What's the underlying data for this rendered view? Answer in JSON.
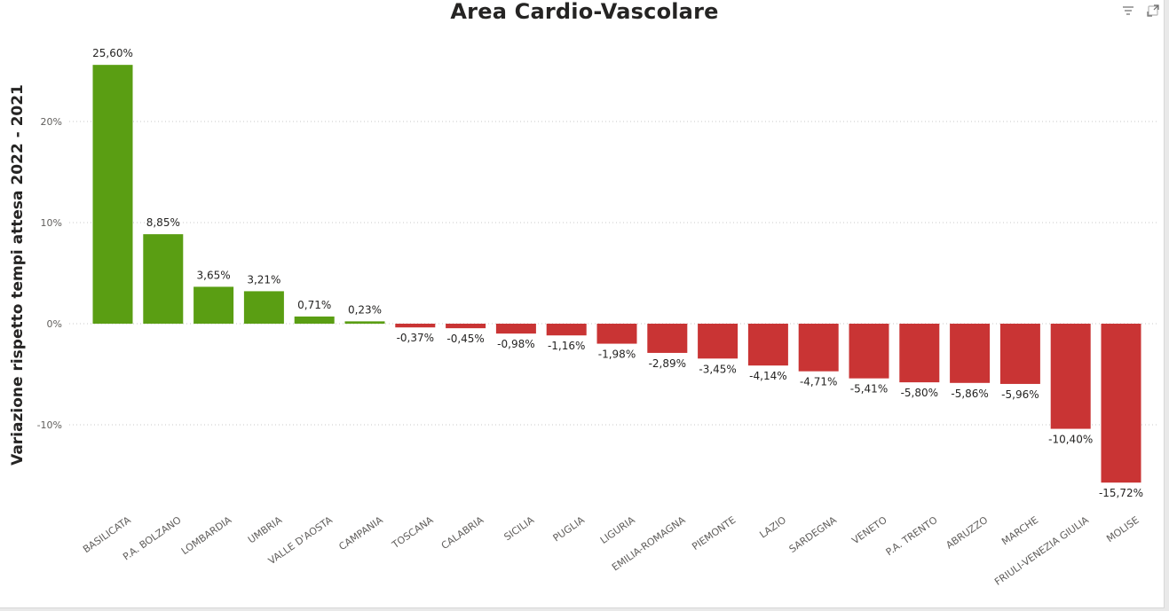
{
  "chart_data": {
    "type": "bar",
    "title": "Area Cardio-Vascolare",
    "xlabel": "",
    "ylabel": "Variazione rispetto tempi attesa 2022 - 2021",
    "ylim": [
      -17,
      27
    ],
    "yticks": [
      20,
      10,
      0,
      -10
    ],
    "ytick_labels": [
      "20%",
      "10%",
      "0%",
      "-10%"
    ],
    "grid": true,
    "positive_color": "#5A9E13",
    "negative_color": "#C93434",
    "categories": [
      "BASILICATA",
      "P.A. BOLZANO",
      "LOMBARDIA",
      "UMBRIA",
      "VALLE D'AOSTA",
      "CAMPANIA",
      "TOSCANA",
      "CALABRIA",
      "SICILIA",
      "PUGLIA",
      "LIGURIA",
      "EMILIA-ROMAGNA",
      "PIEMONTE",
      "LAZIO",
      "SARDEGNA",
      "VENETO",
      "P.A. TRENTO",
      "ABRUZZO",
      "MARCHE",
      "FRIULI-VENEZIA GIULIA",
      "MOLISE"
    ],
    "values": [
      25.6,
      8.85,
      3.65,
      3.21,
      0.71,
      0.23,
      -0.37,
      -0.45,
      -0.98,
      -1.16,
      -1.98,
      -2.89,
      -3.45,
      -4.14,
      -4.71,
      -5.41,
      -5.8,
      -5.86,
      -5.96,
      -10.4,
      -15.72
    ],
    "data_labels": [
      "25,60%",
      "8,85%",
      "3,65%",
      "3,21%",
      "0,71%",
      "0,23%",
      "-0,37%",
      "-0,45%",
      "-0,98%",
      "-1,16%",
      "-1,98%",
      "-2,89%",
      "-3,45%",
      "-4,14%",
      "-4,71%",
      "-5,41%",
      "-5,80%",
      "-5,86%",
      "-5,96%",
      "-10,40%",
      "-15,72%"
    ]
  },
  "toolbar": {
    "filter_icon": "filter-icon",
    "focus_icon": "focus-mode-icon"
  }
}
